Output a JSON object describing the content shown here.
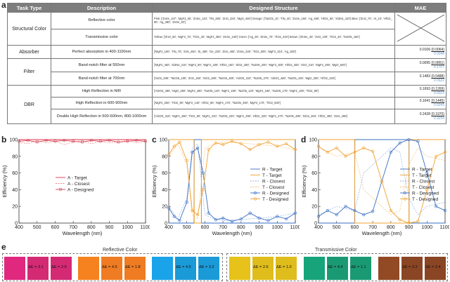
{
  "labels": {
    "a": "a",
    "b": "b",
    "c": "c",
    "d": "d",
    "e": "e"
  },
  "table": {
    "headers": [
      "Task Type",
      "Description",
      "Designed Structure",
      "MAE"
    ],
    "rows": [
      {
        "task": "Structural Color",
        "desc": "Reflective color",
        "struct": "Pink: ['ZnSe_107', 'MgF2_60', 'ZnSe_120', 'TiN_280', 'ZnO_320', 'MgO_460'] Orange: ['Ta2O5_10', 'TiN_40', 'ZnSe_150', 'Ag_490', 'HfO2_60', 'Si3N4_420'] Blue: ['ZnO_70', 'Al_10', 'HfO2_90', 'Ag_380', 'ZnSe_20']",
        "mae": "",
        "mae2": "",
        "mae3": ""
      },
      {
        "task": "",
        "desc": "Transmissive color",
        "struct": "Yellow: ['ZnO_60', 'MgF2_70', 'TiO2_40', 'MgF2_350', 'ZnSe_240'] Green: ['Ag_30', 'ZnSe_70', 'TiO2_240'] Brown: ['ZnSe_40', 'ZnO_100', 'TiO2_40', 'Ta2O5_160']",
        "mae": "",
        "mae2": "",
        "mae3": ""
      },
      {
        "task": "Absorber",
        "desc": "Perfect absorption in 400-1100nm",
        "struct": "['MgF2_190', 'TiN_70', 'ZnS_460', 'Si_480', 'Ge_230', 'ZnS_460', 'ZnSe_320', 'TiO2_500', 'MgF2_310', 'Ag_300']",
        "mae": "0.0106",
        "mae2": "(0.0064)",
        "mae3": "0.0048"
      },
      {
        "task": "Filter",
        "desc": "Band-notch filter at 550nm",
        "struct": "['MgF2_460', 'Si3N4_210', 'MgF2_90', 'MgF2_180', 'HfO2_160', 'SiO2_280', 'Ta2O5_200', 'MgF2_300', 'HfO2_200', 'ZnO_210', 'MgF2_290', 'MgO_500']",
        "mae": "0.0095",
        "mae2": "(0.0851)",
        "mae3": "0.1707"
      },
      {
        "task": "",
        "desc": "Band-notch filter at 700nm",
        "struct": "['SiO2_490', 'Ta2O5_190', 'ZnO_150', 'SiO2_280', 'Ta2O5_280', 'Al2O3_310', 'Ta2O5_270', 'Al2O3_480', 'Ta2O5_430', 'MgO_260', 'HfO2_420']",
        "mae": "0.1483",
        "mae2": "(0.0488)",
        "mae3": "0.0622"
      },
      {
        "task": "DBR",
        "desc": "High Reflection in NIR",
        "struct": "['Al2O3_490', 'MgO_480', 'MgF2_480', 'Ta2O5_120', 'MgF2_180', 'Ta2O5_120', 'MgF2_180', 'Ta2O5_170', 'MgF2_180', 'TiO2_90']",
        "mae": "0.1693",
        "mae2": "(0.1269)",
        "mae3": "0.0923"
      },
      {
        "task": "",
        "desc": "High Reflection in 600-900nm",
        "struct": "['MgF2_250', 'TiO2_90', 'MgF2_140', 'HfO2_80', 'MgF2_170', 'Ta2O5_490', 'MgF2_170', 'TiO2_500']",
        "mae": "0.1641",
        "mae2": "(0.1445)",
        "mae3": "0.0245"
      },
      {
        "task": "",
        "desc": "Double High Reflection in 500-600nm, 800-1000nm",
        "struct": "['Al2O3_310', 'MgF2_490', 'TiO2_90', 'MgF2_310', 'Ta2O5_220', 'MgF2_490', 'HfO2_320', 'MgF2_470', 'Ta2O5_490', 'SiO2_460', 'HfO2_490', 'ZnO_490']",
        "mae": "0.2428",
        "mae2": "(0.1970)",
        "mae3": "0.3294"
      }
    ]
  },
  "chart_data": [
    {
      "type": "line",
      "panel": "b",
      "xlabel": "Wavelength (nm)",
      "ylabel": "Efficiency (%)",
      "xlim": [
        400,
        1100
      ],
      "ylim": [
        0,
        100
      ],
      "xticks": [
        "400",
        "500",
        "600",
        "700",
        "800",
        "900",
        "1000",
        "1100"
      ],
      "yticks": [
        "0",
        "20",
        "40",
        "60",
        "80",
        "100"
      ],
      "legend_placement": "center",
      "series": [
        {
          "name": "A - Target",
          "color": "#e0304a",
          "style": "solid",
          "x": [
            400,
            1100
          ],
          "y": [
            100,
            100
          ]
        },
        {
          "name": "A - Closest",
          "color": "#f08080",
          "style": "dashed",
          "x": [
            400,
            450,
            500,
            550,
            600,
            650,
            700,
            750,
            800,
            850,
            900,
            950,
            1000,
            1050,
            1100
          ],
          "y": [
            97,
            95,
            99,
            96,
            98,
            94,
            97,
            99,
            95,
            98,
            96,
            97,
            99,
            96,
            98
          ]
        },
        {
          "name": "A - Designed",
          "color": "#d04050",
          "style": "marker",
          "x": [
            400,
            450,
            500,
            550,
            600,
            650,
            700,
            750,
            800,
            850,
            900,
            950,
            1000,
            1050,
            1100
          ],
          "y": [
            98,
            99,
            97,
            99,
            98,
            99,
            98,
            97,
            99,
            98,
            99,
            97,
            98,
            99,
            98
          ]
        }
      ]
    },
    {
      "type": "line",
      "panel": "c",
      "xlabel": "Wavelength (nm)",
      "ylabel": "Efficiency (%)",
      "xlim": [
        400,
        1100
      ],
      "ylim": [
        0,
        100
      ],
      "xticks": [
        "400",
        "500",
        "600",
        "700",
        "800",
        "900",
        "1000",
        "1100"
      ],
      "yticks": [
        "0",
        "20",
        "40",
        "60",
        "80",
        "100"
      ],
      "legend_placement": "center-right",
      "series": [
        {
          "name": "R - Target",
          "color": "#3a6fc4",
          "style": "solid",
          "x": [
            400,
            540,
            541,
            580,
            581,
            1100
          ],
          "y": [
            0,
            0,
            100,
            100,
            0,
            0
          ]
        },
        {
          "name": "T - Target",
          "color": "#f0a030",
          "style": "solid",
          "x": [
            400,
            540,
            541,
            580,
            581,
            1100
          ],
          "y": [
            100,
            100,
            0,
            0,
            100,
            100
          ]
        },
        {
          "name": "R - Closest",
          "color": "#8fb0e8",
          "style": "dashed",
          "x": [
            400,
            450,
            500,
            530,
            560,
            600,
            650,
            700,
            800,
            900,
            1000,
            1100
          ],
          "y": [
            20,
            5,
            30,
            90,
            95,
            10,
            5,
            3,
            4,
            6,
            8,
            12
          ]
        },
        {
          "name": "T - Closest",
          "color": "#f5c070",
          "style": "dashed",
          "x": [
            400,
            450,
            500,
            530,
            560,
            600,
            650,
            700,
            800,
            900,
            1000,
            1100
          ],
          "y": [
            80,
            95,
            70,
            10,
            5,
            90,
            95,
            97,
            96,
            94,
            92,
            88
          ]
        },
        {
          "name": "R - Designed",
          "color": "#3a6fc4",
          "style": "marker",
          "x": [
            400,
            430,
            460,
            500,
            530,
            560,
            590,
            620,
            660,
            700,
            750,
            800,
            850,
            900,
            950,
            1000,
            1050,
            1100
          ],
          "y": [
            18,
            8,
            3,
            25,
            85,
            90,
            60,
            12,
            4,
            6,
            2,
            5,
            12,
            6,
            3,
            8,
            5,
            12
          ]
        },
        {
          "name": "T - Designed",
          "color": "#f0a030",
          "style": "marker",
          "x": [
            400,
            430,
            460,
            500,
            530,
            560,
            590,
            620,
            660,
            700,
            750,
            800,
            850,
            900,
            950,
            1000,
            1050,
            1100
          ],
          "y": [
            82,
            92,
            97,
            75,
            15,
            10,
            40,
            88,
            96,
            94,
            98,
            95,
            88,
            94,
            97,
            92,
            95,
            88
          ]
        }
      ]
    },
    {
      "type": "line",
      "panel": "d",
      "xlabel": "Wavelength (nm)",
      "ylabel": "Efficiency (%)",
      "xlim": [
        400,
        1100
      ],
      "ylim": [
        0,
        100
      ],
      "xticks": [
        "400",
        "500",
        "600",
        "700",
        "800",
        "900",
        "1000",
        "1100"
      ],
      "yticks": [
        "0",
        "20",
        "40",
        "60",
        "80",
        "100"
      ],
      "legend_placement": "center-right",
      "series": [
        {
          "name": "R - Target",
          "color": "#3a6fc4",
          "style": "solid",
          "x": [
            400,
            600,
            601,
            900,
            901,
            1100
          ],
          "y": [
            0,
            0,
            100,
            100,
            0,
            0
          ]
        },
        {
          "name": "T - Target",
          "color": "#f0a030",
          "style": "solid",
          "x": [
            400,
            600,
            601,
            900,
            901,
            1100
          ],
          "y": [
            100,
            100,
            0,
            0,
            100,
            100
          ]
        },
        {
          "name": "R - Closest",
          "color": "#8fb0e8",
          "style": "dashed",
          "x": [
            400,
            500,
            600,
            650,
            700,
            800,
            850,
            900,
            950,
            1000,
            1100
          ],
          "y": [
            10,
            20,
            15,
            60,
            70,
            90,
            85,
            30,
            10,
            20,
            25
          ]
        },
        {
          "name": "T - Closest",
          "color": "#f5c070",
          "style": "dashed",
          "x": [
            400,
            500,
            600,
            650,
            700,
            800,
            850,
            900,
            950,
            1000,
            1100
          ],
          "y": [
            90,
            80,
            85,
            40,
            30,
            10,
            15,
            70,
            90,
            80,
            75
          ]
        },
        {
          "name": "R - Designed",
          "color": "#3a6fc4",
          "style": "marker",
          "x": [
            400,
            450,
            500,
            550,
            600,
            650,
            700,
            750,
            800,
            850,
            900,
            950,
            1000,
            1050,
            1100
          ],
          "y": [
            8,
            15,
            10,
            20,
            15,
            10,
            14,
            50,
            85,
            96,
            100,
            98,
            60,
            20,
            15
          ]
        },
        {
          "name": "T - Designed",
          "color": "#f0a030",
          "style": "marker",
          "x": [
            400,
            450,
            500,
            550,
            600,
            650,
            700,
            750,
            800,
            850,
            900,
            950,
            1000,
            1050,
            1100
          ],
          "y": [
            92,
            85,
            90,
            80,
            85,
            90,
            86,
            50,
            15,
            4,
            0,
            2,
            40,
            80,
            85
          ]
        }
      ]
    }
  ],
  "swatches": {
    "reflective_title": "Reflective Color",
    "transmissive_title": "Transmissive Color",
    "groups": [
      {
        "color1": "#e0287e",
        "color2": "#d42a74",
        "de1": "ΔE = 3.1",
        "de2": "ΔE = 2.9"
      },
      {
        "color1": "#f5821f",
        "color2": "#ef7c22",
        "de1": "ΔE = 4.5",
        "de2": "ΔE = 1.8"
      },
      {
        "color1": "#1aa3e8",
        "color2": "#1b9ad8",
        "de1": "ΔE = 4.5",
        "de2": "ΔE = 3.2"
      },
      {
        "color1": "#e6c21a",
        "color2": "#dfbd1c",
        "de1": "ΔE = 2.6",
        "de2": "ΔE = 1.0"
      },
      {
        "color1": "#17a47a",
        "color2": "#1a9a73",
        "de1": "ΔE = 4.4",
        "de2": "ΔE = 1.1"
      },
      {
        "color1": "#924a25",
        "color2": "#8a4524",
        "de1": "ΔE = 3.3",
        "de2": "ΔE = 2.4"
      }
    ]
  }
}
